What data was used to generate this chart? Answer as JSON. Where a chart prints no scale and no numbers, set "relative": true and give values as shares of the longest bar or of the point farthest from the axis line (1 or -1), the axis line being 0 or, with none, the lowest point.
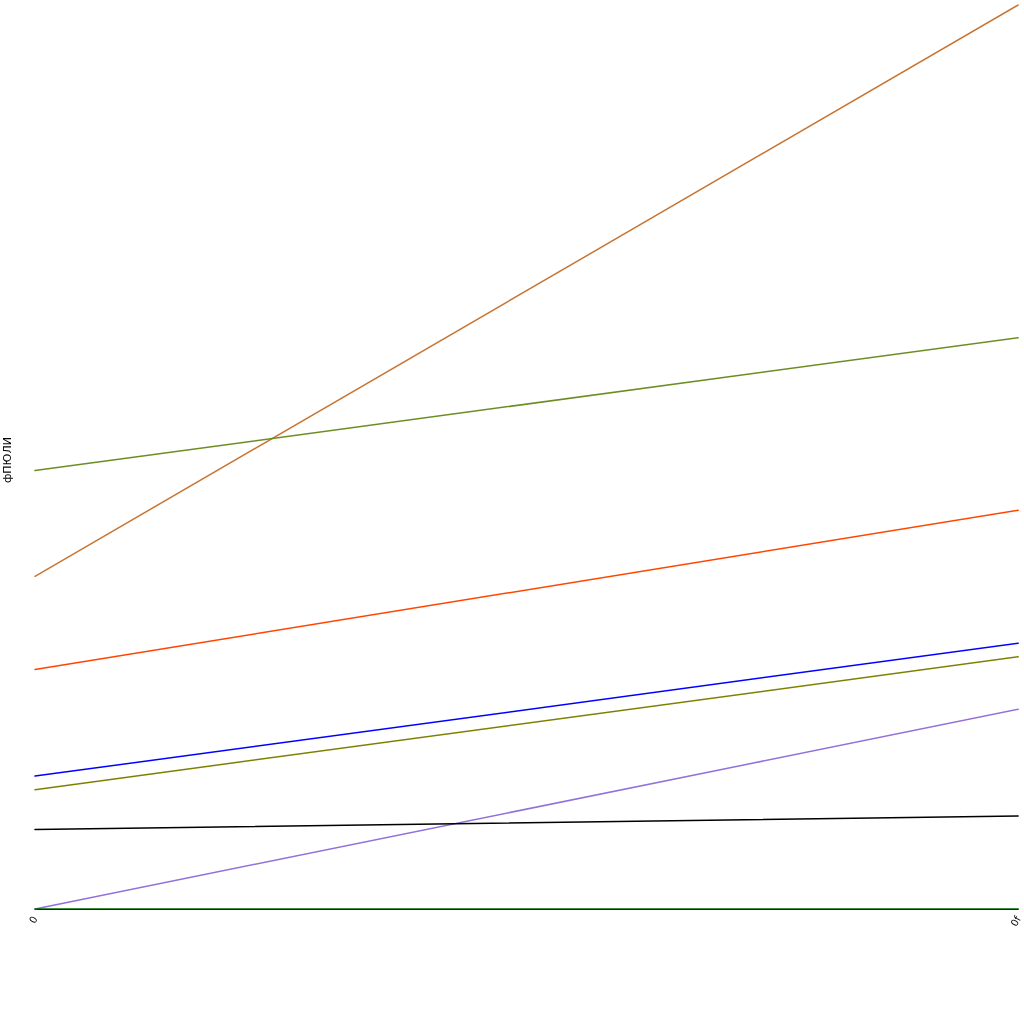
{
  "chart_data": {
    "type": "line",
    "relative": true,
    "ylabel": "фПЮЛИ",
    "categories": [
      "0",
      "0f"
    ],
    "series": [
      {
        "color": "#c87533",
        "values": [
          0.368,
          1
        ]
      },
      {
        "color": "#6b8e23",
        "values": [
          0.485,
          0.632
        ]
      },
      {
        "color": "#ff4500",
        "values": [
          0.265,
          0.441
        ]
      },
      {
        "color": "#0000ff",
        "values": [
          0.147,
          0.294
        ]
      },
      {
        "color": "#808000",
        "values": [
          0.132,
          0.279
        ]
      },
      {
        "color": "#9370db",
        "values": [
          0,
          0.221
        ]
      },
      {
        "color": "#000000",
        "values": [
          0.088,
          0.103
        ]
      },
      {
        "color": "#006400",
        "values": [
          0,
          0
        ]
      }
    ],
    "marker": "none",
    "line_style": "solid"
  }
}
